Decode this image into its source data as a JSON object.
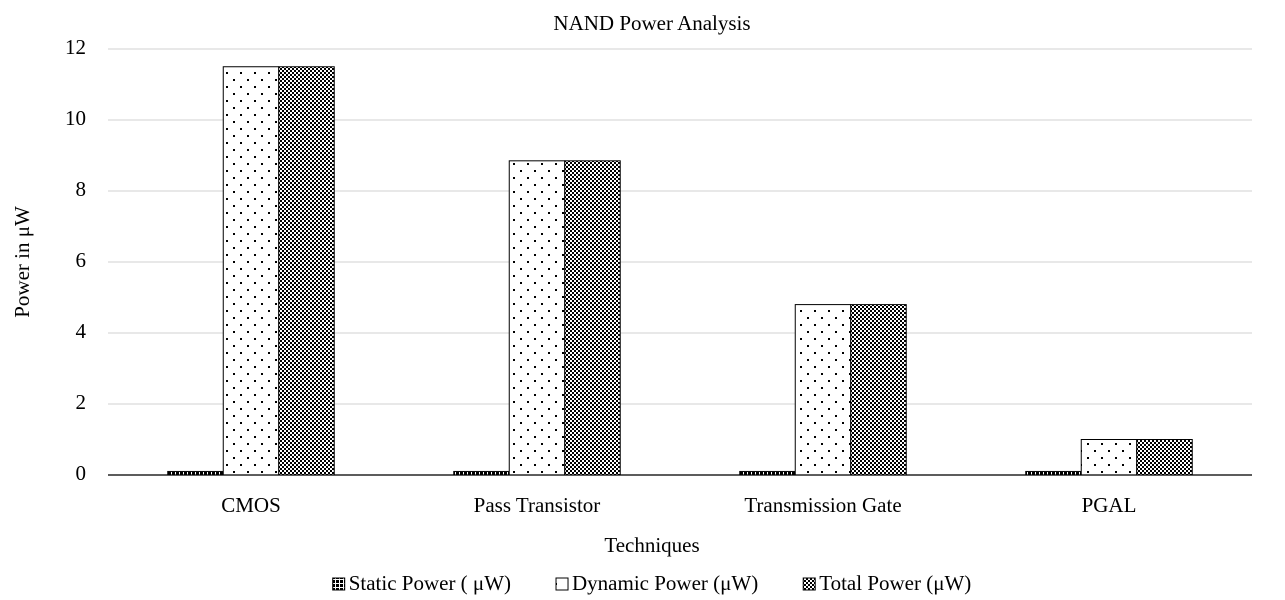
{
  "chart_data": {
    "type": "bar",
    "title": "NAND Power Analysis",
    "x_label": "Techniques",
    "y_label": "Power in μW",
    "categories": [
      "CMOS",
      "Pass Transistor",
      "Transmission Gate",
      "PGAL"
    ],
    "series": [
      {
        "name": "Static Power ( μW)",
        "color": "#000000",
        "pattern": "grid",
        "values": [
          0.1,
          0.1,
          0.1,
          0.1
        ]
      },
      {
        "name": "Dynamic Power (μW)",
        "color": "#000000",
        "pattern": "dots",
        "values": [
          11.5,
          8.85,
          4.8,
          1.0
        ]
      },
      {
        "name": "Total Power (μW)",
        "color": "#000000",
        "pattern": "checker",
        "values": [
          11.5,
          8.85,
          4.8,
          1.0
        ]
      }
    ],
    "ylim": [
      0,
      12
    ],
    "yticks": [
      0,
      2,
      4,
      6,
      8,
      10,
      12
    ],
    "grid": true,
    "legend": "bottom"
  }
}
